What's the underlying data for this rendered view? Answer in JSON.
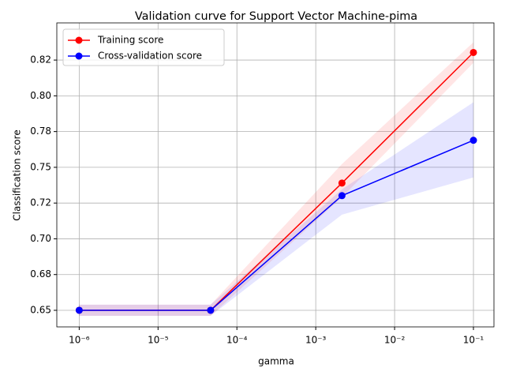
{
  "chart_data": {
    "type": "line",
    "title": "Validation curve for Support Vector Machine-pima",
    "x_label": "gamma",
    "y_label": "Classification score",
    "x": [
      1e-06,
      4.64e-05,
      0.00215,
      0.1
    ],
    "xscale": "log",
    "xlim": [
      5.2e-07,
      0.182
    ],
    "xticks": [
      {
        "value": 1e-06,
        "label": "10⁻⁶"
      },
      {
        "value": 1e-05,
        "label": "10⁻⁵"
      },
      {
        "value": 0.0001,
        "label": "10⁻⁴"
      },
      {
        "value": 0.001,
        "label": "10⁻³"
      },
      {
        "value": 0.01,
        "label": "10⁻²"
      },
      {
        "value": 0.1,
        "label": "10⁻¹"
      }
    ],
    "ylim": [
      0.6384,
      0.851
    ],
    "yticks": [
      0.65,
      {
        "value": 0.675,
        "label": "0.68"
      },
      {
        "value": 0.7,
        "label": "0.70"
      },
      {
        "value": 0.725,
        "label": "0.72"
      },
      {
        "value": 0.75,
        "label": "0.75"
      },
      {
        "value": 0.775,
        "label": "0.78"
      },
      {
        "value": 0.8,
        "label": "0.80"
      },
      {
        "value": 0.825,
        "label": "0.82"
      }
    ],
    "grid": true,
    "legend": "upper left",
    "series": [
      {
        "name": "Training score",
        "color": "#ff0000",
        "values": [
          0.65,
          0.65,
          0.739,
          0.8303
        ],
        "lower": [
          0.6461,
          0.6461,
          0.729,
          0.8231
        ],
        "upper": [
          0.6539,
          0.6539,
          0.7523,
          0.8375
        ]
      },
      {
        "name": "Cross-validation score",
        "color": "#0000ff",
        "values": [
          0.65,
          0.65,
          0.7302,
          0.7689
        ],
        "lower": [
          0.6461,
          0.6461,
          0.7169,
          0.7429
        ],
        "upper": [
          0.6539,
          0.6539,
          0.7346,
          0.7955
        ]
      }
    ]
  }
}
